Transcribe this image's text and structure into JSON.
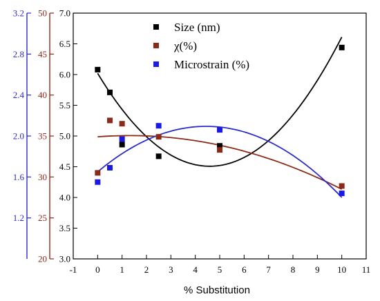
{
  "chart_data": {
    "type": "scatter",
    "xlabel": "% Substitution",
    "x_ticks": [
      -1,
      0,
      1,
      2,
      3,
      4,
      5,
      6,
      7,
      8,
      9,
      10,
      11
    ],
    "xlim": [
      -1,
      11
    ],
    "axes": {
      "size": {
        "lim": [
          3.0,
          7.0
        ],
        "ticks": [
          "3.0",
          "3.5",
          "4.0",
          "4.5",
          "5.0",
          "5.5",
          "6.0",
          "6.5",
          "7.0"
        ],
        "color": "#000000"
      },
      "chi": {
        "lim": [
          20,
          50
        ],
        "ticks": [
          "20",
          "25",
          "30",
          "35",
          "40",
          "45",
          "50"
        ],
        "color": "#8b2a16"
      },
      "microstrain": {
        "lim": [
          0.8,
          3.2
        ],
        "ticks": [
          "1.2",
          "1.6",
          "2.0",
          "2.4",
          "2.8",
          "3.2"
        ],
        "color": "#2b2bcc"
      }
    },
    "legend_position": "top-center",
    "grid": false,
    "series": [
      {
        "name": "Size (nm)",
        "axis": "size",
        "marker_color": "#000000",
        "fit_color": "#000000",
        "x": [
          0,
          0.5,
          1,
          2.5,
          5,
          10
        ],
        "y": [
          6.08,
          5.71,
          4.86,
          4.67,
          4.84,
          6.44
        ],
        "fit": [
          6.02,
          -0.659,
          0.0718
        ]
      },
      {
        "name": "χ(%)",
        "axis": "chi",
        "marker_color": "#8b2a16",
        "fit_color": "#8b2a16",
        "x": [
          0,
          0.5,
          1,
          2.5,
          5,
          10
        ],
        "y": [
          30.5,
          36.9,
          36.5,
          34.9,
          33.3,
          28.9
        ],
        "fit": [
          34.9,
          0.23,
          -0.087
        ]
      },
      {
        "name": "Microstrain (%)",
        "axis": "microstrain",
        "marker_color": "#1a1ae0",
        "fit_color": "#2b2bcc",
        "x": [
          0,
          0.5,
          1,
          2.5,
          5,
          10
        ],
        "y": [
          1.55,
          1.69,
          1.97,
          2.1,
          2.06,
          1.44
        ],
        "fit": [
          1.65,
          0.2,
          -0.0225
        ]
      }
    ]
  }
}
